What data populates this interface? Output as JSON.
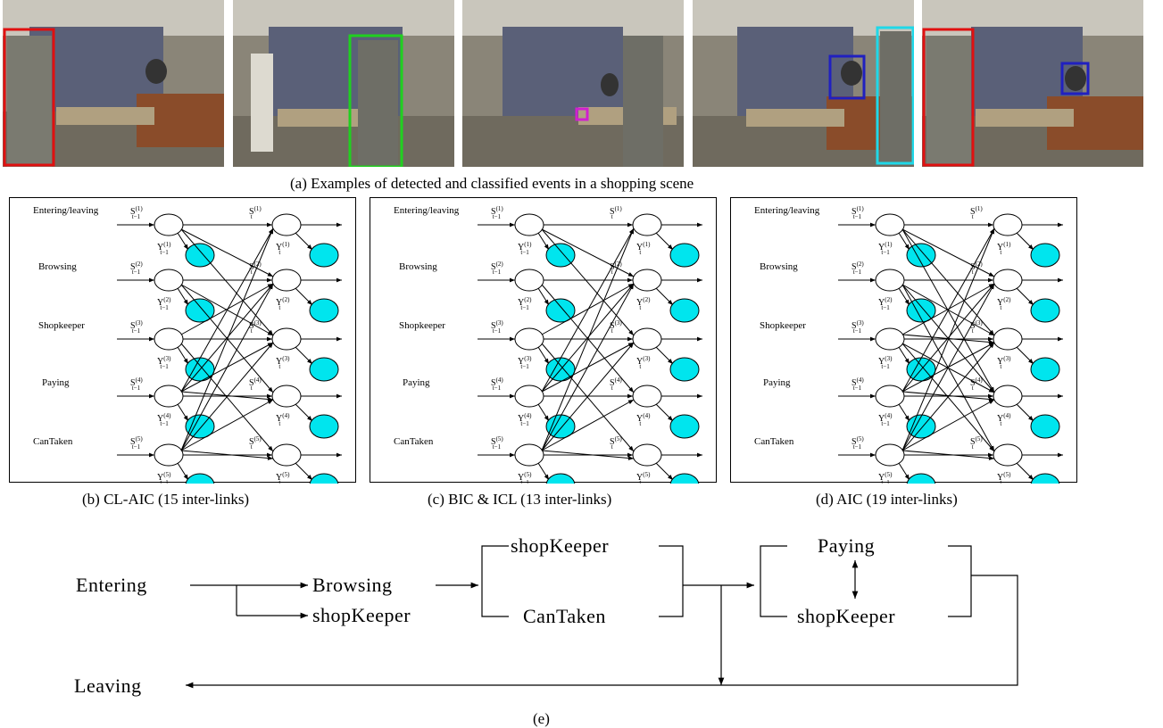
{
  "photo_strip": {
    "frames": [
      {
        "box_color": "#e01010"
      },
      {
        "box_color": "#20d020"
      },
      {
        "box_color": "#d020d0"
      },
      {
        "box_color": "#2020c0",
        "box2_color": "#20d8e8"
      },
      {
        "box_color": "#e01010",
        "box2_color": "#2020c0"
      }
    ]
  },
  "caption_a": "(a) Examples of detected and classified events in a shopping scene",
  "panels": [
    {
      "caption": "(b) CL-AIC (15 inter-links)"
    },
    {
      "caption": "(c) BIC & ICL (13 inter-links)"
    },
    {
      "caption": "(d) AIC (19 inter-links)"
    }
  ],
  "row_labels": [
    "Entering/leaving",
    "Browsing",
    "Shopkeeper",
    "Paying",
    "CanTaken"
  ],
  "node_symbols": {
    "state": "S",
    "obs": "Y",
    "prev_sub": "t−1",
    "cur_sub": "t"
  },
  "node_indices": [
    "(1)",
    "(2)",
    "(3)",
    "(4)",
    "(5)"
  ],
  "colors": {
    "obs_fill": "#00e5ee",
    "line": "#000000"
  },
  "flow": {
    "entering": "Entering",
    "browsing": "Browsing",
    "shopkeeper_1": "shopKeeper",
    "shopkeeper_2": "shopKeeper",
    "cantaken": "CanTaken",
    "paying": "Paying",
    "shopkeeper_3": "shopKeeper",
    "leaving": "Leaving"
  },
  "caption_e": "(e)"
}
